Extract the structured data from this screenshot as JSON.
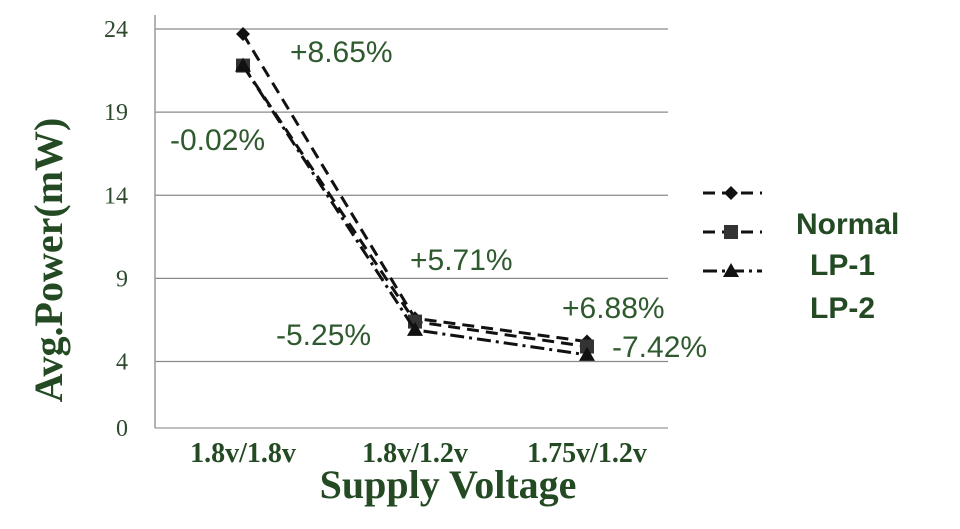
{
  "chart_data": {
    "type": "line",
    "xlabel": "Supply Voltage",
    "ylabel": "Avg.Power(mW)",
    "categories": [
      "1.8v/1.8v",
      "1.8v/1.2v",
      "1.75v/1.2v"
    ],
    "ylim": [
      0,
      24
    ],
    "yticks": [
      0,
      4,
      9,
      14,
      19,
      24
    ],
    "grid": true,
    "legend_position": "right",
    "legend_labels": [
      "Normal",
      "LP-1",
      "LP-2"
    ],
    "series": [
      {
        "name": "Normal",
        "marker": "diamond",
        "dash": "dashed",
        "values": [
          23.7,
          6.6,
          5.2
        ]
      },
      {
        "name": "LP-1",
        "marker": "square",
        "dash": "dashed",
        "values": [
          21.8,
          6.4,
          4.9
        ]
      },
      {
        "name": "LP-2",
        "marker": "triangle",
        "dash": "dashdot",
        "values": [
          21.8,
          5.9,
          4.4
        ]
      }
    ],
    "annotations": [
      "+8.65%",
      "-0.02%",
      "+5.71%",
      "-5.25%",
      "+6.88%",
      "-7.42%"
    ],
    "colors": {
      "text": "#234a23",
      "grid": "#8a8a8a",
      "line": "#111111"
    }
  }
}
